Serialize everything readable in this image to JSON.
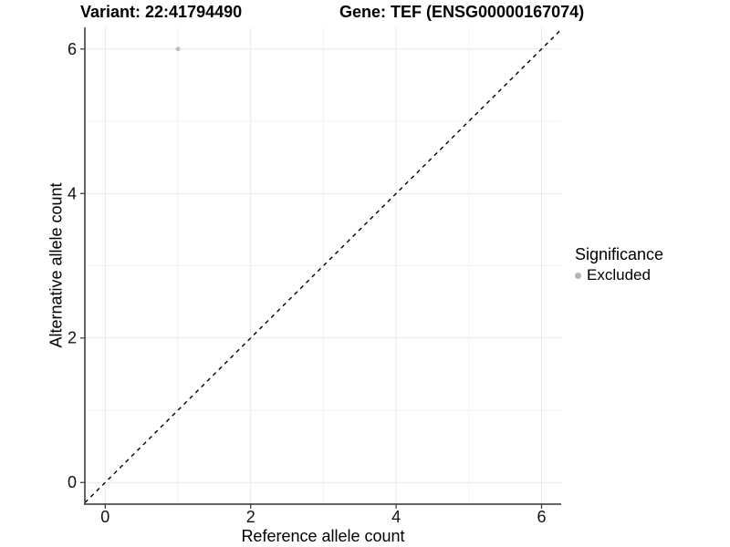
{
  "chart_data": {
    "type": "scatter",
    "title_left": "Variant: 22:41794490",
    "title_right": "Gene: TEF (ENSG00000167074)",
    "xlabel": "Reference allele count",
    "ylabel": "Alternative allele count",
    "xlim": [
      -0.28,
      6.27
    ],
    "ylim": [
      -0.3,
      6.3
    ],
    "x_ticks": [
      0,
      2,
      4,
      6
    ],
    "y_ticks": [
      0,
      2,
      4,
      6
    ],
    "x_minor_ticks": [
      1,
      3,
      5
    ],
    "y_minor_ticks": [
      1,
      3,
      5
    ],
    "grid": true,
    "identity_line": {
      "style": "dashed",
      "color": "#000000",
      "slope": 1,
      "intercept": 0
    },
    "series": [
      {
        "name": "Excluded",
        "color": "#bcbcbc",
        "points": [
          {
            "x": 1,
            "y": 6
          }
        ]
      }
    ],
    "legend": {
      "title": "Significance",
      "position": "right",
      "items": [
        {
          "label": "Excluded",
          "color": "#b4b4b4"
        }
      ]
    },
    "colors": {
      "grid_major": "#e9e9e9",
      "grid_minor": "#f3f3f3",
      "axis_line": "#333333",
      "tick_label": "#111111"
    }
  }
}
